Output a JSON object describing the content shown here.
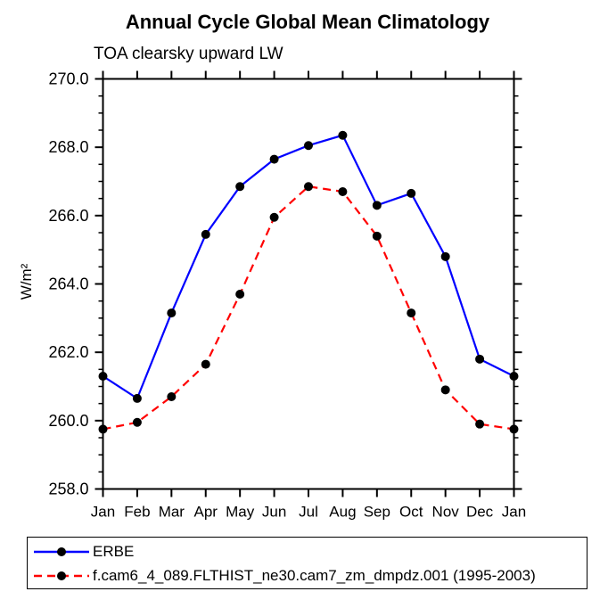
{
  "title": "Annual Cycle Global Mean Climatology",
  "subtitle": "TOA clearsky upward LW",
  "ylabel": "W/m²",
  "colors": {
    "erbe_line": "#0000ff",
    "model_line": "#ff0000",
    "marker": "#000000",
    "axis": "#000000"
  },
  "legend": {
    "entries": [
      {
        "label": "ERBE",
        "color": "#0000ff",
        "style": "solid"
      },
      {
        "label": "f.cam6_4_089.FLTHIST_ne30.cam7_zm_dmpdz.001 (1995-2003)",
        "color": "#ff0000",
        "style": "dashed"
      }
    ]
  },
  "chart_data": {
    "type": "line",
    "title": "Annual Cycle Global Mean Climatology",
    "subtitle": "TOA clearsky upward LW",
    "xlabel": "",
    "ylabel": "W/m²",
    "x_tick_labels": [
      "Jan",
      "Feb",
      "Mar",
      "Apr",
      "May",
      "Jun",
      "Jul",
      "Aug",
      "Sep",
      "Oct",
      "Nov",
      "Dec",
      "Jan"
    ],
    "y_ticks": [
      258.0,
      260.0,
      262.0,
      264.0,
      266.0,
      268.0,
      270.0
    ],
    "y_minor_step": 0.5,
    "ylim": [
      258.0,
      270.0
    ],
    "grid": false,
    "legend_position": "bottom",
    "series": [
      {
        "name": "ERBE",
        "color": "#0000ff",
        "style": "solid",
        "marker": "circle",
        "marker_color": "#000000",
        "values": [
          261.3,
          260.65,
          263.15,
          265.45,
          266.85,
          267.65,
          268.05,
          268.35,
          266.3,
          266.65,
          264.8,
          261.8,
          261.3
        ]
      },
      {
        "name": "f.cam6_4_089.FLTHIST_ne30.cam7_zm_dmpdz.001 (1995-2003)",
        "color": "#ff0000",
        "style": "dashed",
        "marker": "circle",
        "marker_color": "#000000",
        "values": [
          259.75,
          259.95,
          260.7,
          261.65,
          263.7,
          265.95,
          266.85,
          266.7,
          265.4,
          263.15,
          260.9,
          259.9,
          259.75
        ]
      }
    ]
  }
}
